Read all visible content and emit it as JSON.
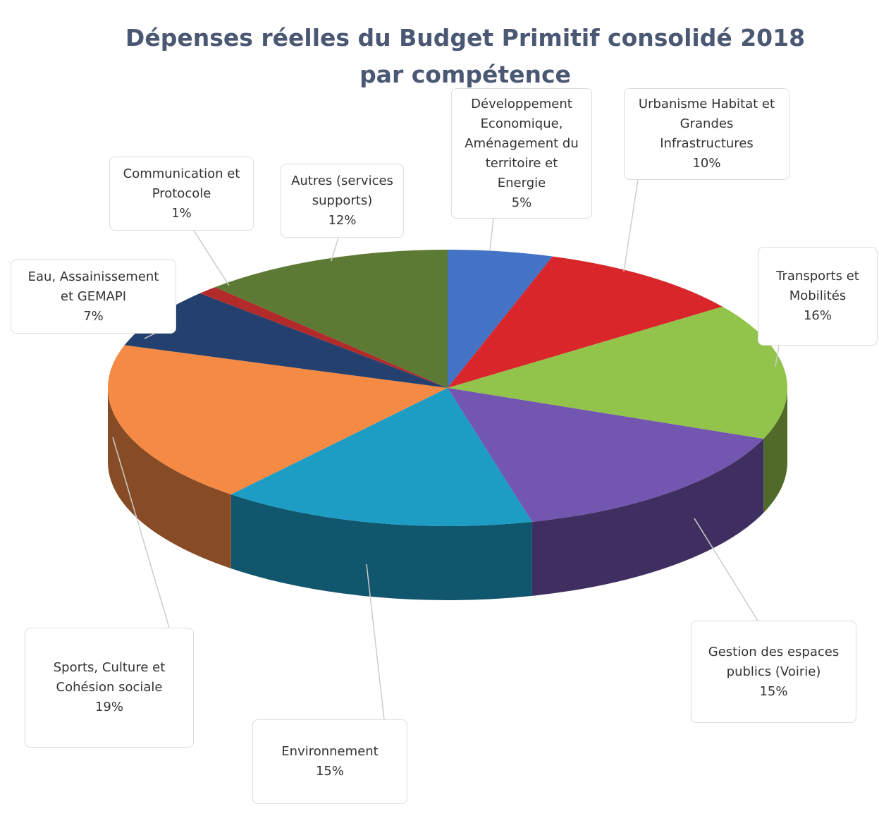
{
  "chart_data": {
    "type": "pie3d",
    "title": "Dépenses réelles du Budget Primitif consolidé 2018 par compétence",
    "categories": [
      "Développement Economique, Aménagement du territoire et Energie",
      "Urbanisme Habitat et Grandes Infrastructures",
      "Transports et Mobilités",
      "Gestion des espaces publics (Voirie)",
      "Environnement",
      "Sports, Culture et Cohésion sociale",
      "Eau, Assainissement et GEMAPI",
      "Communication et Protocole",
      "Autres (services supports)"
    ],
    "values": [
      5,
      10,
      16,
      15,
      15,
      19,
      7,
      1,
      12
    ],
    "value_labels": [
      "5%",
      "10%",
      "16%",
      "15%",
      "15%",
      "19%",
      "7%",
      "1%",
      "12%"
    ],
    "colors": [
      "#4472c4",
      "#d9262b",
      "#92c34b",
      "#7356b0",
      "#1d9cc4",
      "#f58a45",
      "#24406e",
      "#b22a2a",
      "#5d7a35"
    ]
  }
}
